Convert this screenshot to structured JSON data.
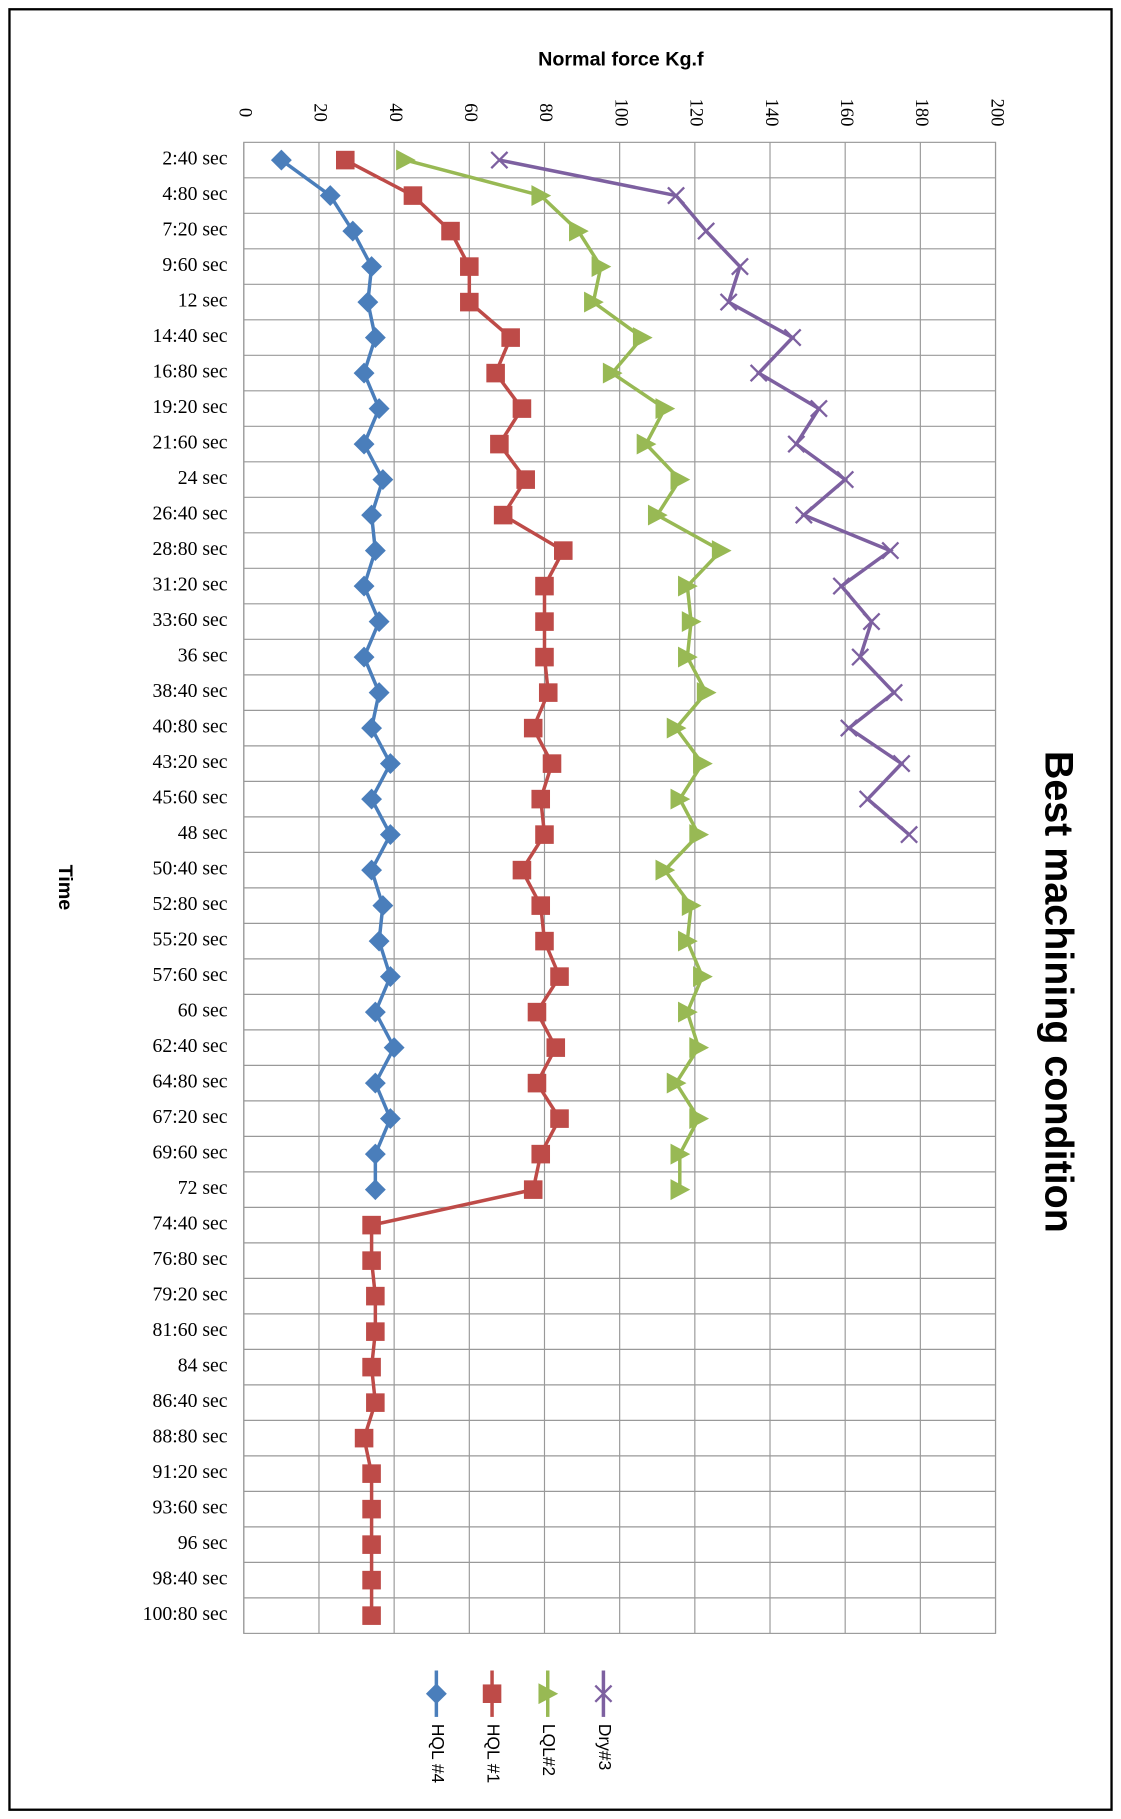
{
  "chart_data": {
    "type": "line",
    "orientation": "horizontal",
    "title": "Best machining condition",
    "xlabel": "Time",
    "ylabel": "Normal force Kg.f",
    "categories": [
      "2:40 sec",
      "4:80 sec",
      "7:20 sec",
      "9:60 sec",
      "12 sec",
      "14:40 sec",
      "16:80 sec",
      "19:20 sec",
      "21:60 sec",
      "24 sec",
      "26:40 sec",
      "28:80 sec",
      "31:20 sec",
      "33:60 sec",
      "36 sec",
      "38:40 sec",
      "40:80 sec",
      "43:20 sec",
      "45:60 sec",
      "48 sec",
      "50:40 sec",
      "52:80 sec",
      "55:20 sec",
      "57:60 sec",
      "60 sec",
      "62:40 sec",
      "64:80 sec",
      "67:20 sec",
      "69:60 sec",
      "72 sec",
      "74:40 sec",
      "76:80 sec",
      "79:20 sec",
      "81:60 sec",
      "84 sec",
      "86:40 sec",
      "88:80 sec",
      "91:20 sec",
      "93:60 sec",
      "96 sec",
      "98:40 sec",
      "100:80 sec"
    ],
    "ylim": [
      0,
      200
    ],
    "yticks": [
      0,
      20,
      40,
      60,
      80,
      100,
      120,
      140,
      160,
      180,
      200
    ],
    "grid": true,
    "series": [
      {
        "name": "HQL #4",
        "color": "#4a7ebb",
        "marker": "diamond",
        "values": [
          10,
          23,
          29,
          34,
          33,
          35,
          32,
          36,
          32,
          37,
          34,
          35,
          32,
          36,
          32,
          36,
          34,
          39,
          34,
          39,
          34,
          37,
          36,
          39,
          35,
          40,
          35,
          39,
          35,
          35,
          null,
          null,
          null,
          null,
          null,
          null,
          null,
          null,
          null,
          null,
          null,
          null
        ]
      },
      {
        "name": "HQL #1",
        "color": "#be4b48",
        "marker": "square",
        "values": [
          27,
          45,
          55,
          60,
          60,
          71,
          67,
          74,
          68,
          75,
          69,
          85,
          80,
          80,
          80,
          81,
          77,
          82,
          79,
          80,
          74,
          79,
          80,
          84,
          78,
          83,
          78,
          84,
          79,
          77,
          34,
          34,
          35,
          35,
          34,
          35,
          32,
          34,
          34,
          34,
          34,
          34
        ]
      },
      {
        "name": "LQL#2",
        "color": "#98b954",
        "marker": "triangle",
        "values": [
          43,
          79,
          89,
          95,
          93,
          106,
          98,
          112,
          107,
          116,
          110,
          127,
          118,
          119,
          118,
          123,
          115,
          122,
          116,
          121,
          112,
          119,
          118,
          122,
          118,
          121,
          115,
          121,
          116,
          116,
          null,
          null,
          null,
          null,
          null,
          null,
          null,
          null,
          null,
          null,
          null,
          null
        ]
      },
      {
        "name": "Dry#3",
        "color": "#7d60a0",
        "marker": "x",
        "values": [
          68,
          115,
          123,
          132,
          129,
          146,
          137,
          153,
          147,
          160,
          149,
          172,
          159,
          167,
          164,
          173,
          161,
          175,
          166,
          177,
          null,
          null,
          null,
          null,
          null,
          null,
          null,
          null,
          null,
          null,
          null,
          null,
          null,
          null,
          null,
          null,
          null,
          null,
          null,
          null,
          null,
          null
        ]
      }
    ]
  }
}
